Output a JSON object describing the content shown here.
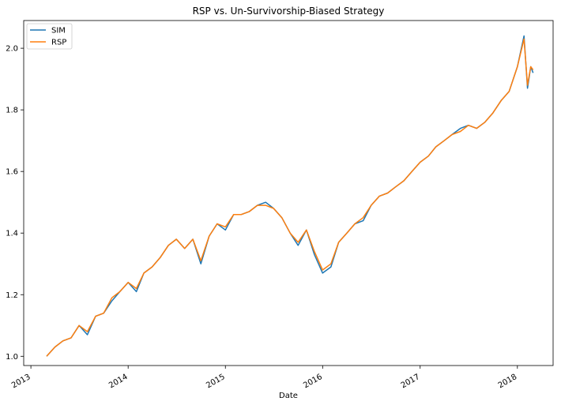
{
  "chart_data": {
    "type": "line",
    "title": "RSP vs. Un-Survivorship-Biased Strategy",
    "xlabel": "Date",
    "ylabel": "",
    "x_ticks": [
      "2013",
      "2014",
      "2015",
      "2016",
      "2017",
      "2018"
    ],
    "y_ticks": [
      "1.0",
      "1.2",
      "1.4",
      "1.6",
      "1.8",
      "2.0"
    ],
    "xlim": [
      "2012-12-05",
      "2018-05-15"
    ],
    "ylim": [
      0.97,
      2.09
    ],
    "grid": false,
    "legend_position": "top-left",
    "x": [
      "2013-03-01",
      "2013-04-01",
      "2013-05-01",
      "2013-06-01",
      "2013-07-01",
      "2013-08-01",
      "2013-09-01",
      "2013-10-01",
      "2013-11-01",
      "2013-12-01",
      "2014-01-01",
      "2014-02-01",
      "2014-03-01",
      "2014-04-01",
      "2014-05-01",
      "2014-06-01",
      "2014-07-01",
      "2014-08-01",
      "2014-09-01",
      "2014-10-01",
      "2014-11-01",
      "2014-12-01",
      "2015-01-01",
      "2015-02-01",
      "2015-03-01",
      "2015-04-01",
      "2015-05-01",
      "2015-06-01",
      "2015-07-01",
      "2015-08-01",
      "2015-09-01",
      "2015-10-01",
      "2015-11-01",
      "2015-12-01",
      "2016-01-01",
      "2016-02-01",
      "2016-03-01",
      "2016-04-01",
      "2016-05-01",
      "2016-06-01",
      "2016-07-01",
      "2016-08-01",
      "2016-09-01",
      "2016-10-01",
      "2016-11-01",
      "2016-12-01",
      "2017-01-01",
      "2017-02-01",
      "2017-03-01",
      "2017-04-01",
      "2017-05-01",
      "2017-06-01",
      "2017-07-01",
      "2017-08-01",
      "2017-09-01",
      "2017-10-01",
      "2017-11-01",
      "2017-12-01",
      "2018-01-01",
      "2018-01-26",
      "2018-02-08",
      "2018-02-20",
      "2018-03-01"
    ],
    "series": [
      {
        "name": "SIM",
        "color": "#1f77b4",
        "values": [
          1.0,
          1.03,
          1.05,
          1.06,
          1.1,
          1.07,
          1.13,
          1.14,
          1.18,
          1.21,
          1.24,
          1.21,
          1.27,
          1.29,
          1.32,
          1.36,
          1.38,
          1.35,
          1.38,
          1.3,
          1.39,
          1.43,
          1.41,
          1.46,
          1.46,
          1.47,
          1.49,
          1.5,
          1.48,
          1.45,
          1.4,
          1.36,
          1.41,
          1.33,
          1.27,
          1.29,
          1.37,
          1.4,
          1.43,
          1.44,
          1.49,
          1.52,
          1.53,
          1.55,
          1.57,
          1.6,
          1.63,
          1.65,
          1.68,
          1.7,
          1.72,
          1.74,
          1.75,
          1.74,
          1.76,
          1.79,
          1.83,
          1.86,
          1.94,
          2.04,
          1.87,
          1.94,
          1.92
        ]
      },
      {
        "name": "RSP",
        "color": "#ff7f0e",
        "values": [
          1.0,
          1.03,
          1.05,
          1.06,
          1.1,
          1.08,
          1.13,
          1.14,
          1.19,
          1.21,
          1.24,
          1.22,
          1.27,
          1.29,
          1.32,
          1.36,
          1.38,
          1.35,
          1.38,
          1.31,
          1.39,
          1.43,
          1.42,
          1.46,
          1.46,
          1.47,
          1.49,
          1.49,
          1.48,
          1.45,
          1.4,
          1.37,
          1.41,
          1.34,
          1.28,
          1.3,
          1.37,
          1.4,
          1.43,
          1.45,
          1.49,
          1.52,
          1.53,
          1.55,
          1.57,
          1.6,
          1.63,
          1.65,
          1.68,
          1.7,
          1.72,
          1.73,
          1.75,
          1.74,
          1.76,
          1.79,
          1.83,
          1.86,
          1.94,
          2.03,
          1.88,
          1.94,
          1.93
        ]
      }
    ]
  }
}
